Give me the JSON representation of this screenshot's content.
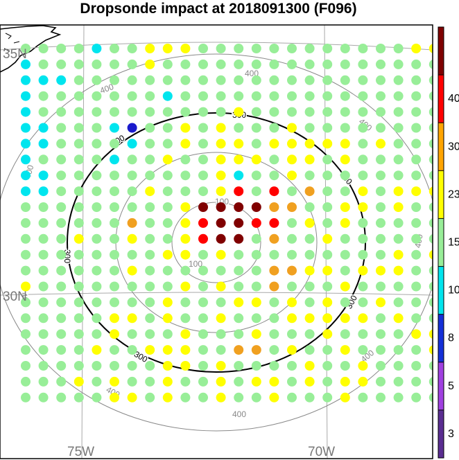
{
  "title": "Dropsonde impact at 2018091300 (F096)",
  "map": {
    "lat_labels": [
      {
        "name": "lat-35n",
        "text": "35N"
      },
      {
        "name": "lat-30n",
        "text": "30N"
      }
    ],
    "lon_labels": [
      {
        "name": "lon-75w",
        "text": "75W"
      },
      {
        "name": "lon-70w",
        "text": "70W"
      }
    ],
    "contours": [
      {
        "level": "100",
        "label": "100",
        "color": "#888888"
      },
      {
        "level": "200",
        "label": "",
        "color": "#888888"
      },
      {
        "level": "300",
        "label": "300",
        "color": "#000000"
      },
      {
        "level": "400",
        "label": "400",
        "color": "#888888"
      }
    ]
  },
  "colorbar": {
    "tick_labels": [
      "3",
      "5",
      "8",
      "10",
      "15",
      "23",
      "30",
      "40"
    ],
    "colors": [
      "#5a2d91",
      "#a040e0",
      "#1530d8",
      "#00e5ee",
      "#98ee98",
      "#ffff00",
      "#ffa500",
      "#ff0000",
      "#7f0000"
    ]
  },
  "dot_colors": {
    "darkblue": "#1a1acc",
    "cyan": "#00e5ee",
    "green": "#98ee98",
    "yellow": "#ffff00",
    "orange": "#f0a020",
    "red": "#ff0000",
    "darkred": "#800000"
  },
  "chart_data": {
    "type": "map-grid",
    "grid_rows": [
      "GGGGCGGYYYGGGGGGGGGGGGYY",
      "CGGGGGGYGGGGGGGGGGGGGGGG",
      "CCCGGGGGGGGGGGGGGGGGGGGG",
      "CGGGGGGGCGGGGGGGGGGGGGGG",
      "CGGGGGGGGGGGYGGGGGGGGGGG",
      "CCGGGCBGGYGYGGGYGGGGGGGG",
      "CCGGGGCGGYGYYGYYYYYGYGGG",
      "CGGGGCGGYGGYYYGYYGYGGGGG",
      "CCGGGGGGGGGYCGGYGGGGGGGG",
      "CCGGGGGYGGGYRGRGOGGYGYYY",
      "GGGGGGGGGYDDDDOOGGYYGYGG",
      "GGGGGGOGGYRDDRRGYGYGGGGG",
      "GGGYGGYGGYRDDGOGGYGGGGGG",
      "GGGGGGGGYYGYGGGGGGGGGYGY",
      "GGGGGGYGGGGGGGOOYYGYYYGG",
      "YGGGGGGGGYGYGGOGGGYGGGGG",
      "GGGGGGGGYGGGYYGYGYGGYGGG",
      "GGGGGYYGYGGYGGGYYYYYGYGG",
      "GGGGGYGGGYGGGYGGGYGGGGYY",
      "GGGGYGGYYYGGOOGYGGYGGGGY",
      "GGGGGGGGYYGYGGGGYGGYGGGG",
      "GGGYGYGGYGGYGYYGYGYYGGGG",
      "GGGGGYYGYGGYGGYGGGYGGGGG"
    ],
    "color_key": {
      "B": "3-8 (darkblue)",
      "C": "8-10 (cyan)",
      "G": "10-15 (green)",
      "Y": "15-23 (yellow)",
      "O": "23-30 (orange)",
      "R": "30-40 (red)",
      "D": ">40 (darkred)"
    },
    "colorbar_levels": [
      3,
      5,
      8,
      10,
      15,
      23,
      30,
      40
    ],
    "contour_levels": [
      100,
      200,
      300,
      400
    ]
  }
}
